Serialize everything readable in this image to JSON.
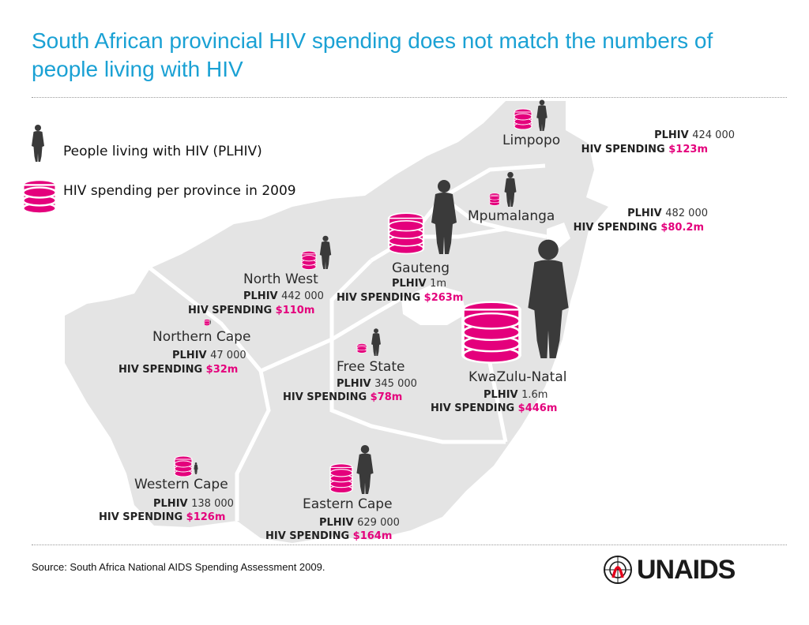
{
  "title": "South African provincial HIV spending does not match the numbers of people living with HIV",
  "legend": {
    "plhiv": "People living with HIV (PLHIV)",
    "spending": "HIV spending per province in 2009"
  },
  "stat_keys": {
    "plhiv": "PLHIV",
    "spending": "HIV SPENDING"
  },
  "provinces": [
    {
      "name": "Limpopo",
      "plhiv": "424 000",
      "spending": "$123m"
    },
    {
      "name": "Mpumalanga",
      "plhiv": "482 000",
      "spending": "$80.2m"
    },
    {
      "name": "Gauteng",
      "plhiv": "1m",
      "spending": "$263m"
    },
    {
      "name": "North West",
      "plhiv": "442 000",
      "spending": "$110m"
    },
    {
      "name": "Northern Cape",
      "plhiv": "47 000",
      "spending": "$32m"
    },
    {
      "name": "Free State",
      "plhiv": "345 000",
      "spending": "$78m"
    },
    {
      "name": "KwaZulu-Natal",
      "plhiv": "1.6m",
      "spending": "$446m"
    },
    {
      "name": "Western Cape",
      "plhiv": "138 000",
      "spending": "$126m"
    },
    {
      "name": "Eastern Cape",
      "plhiv": "629 000",
      "spending": "$164m"
    }
  ],
  "source": "Source: South Africa National AIDS Spending Assessment 2009.",
  "logo": {
    "text": "UNAIDS"
  },
  "colors": {
    "title": "#1aa1d4",
    "accent": "#e4007c",
    "map": "#e3e3e3",
    "figure": "#3a3a3a"
  }
}
